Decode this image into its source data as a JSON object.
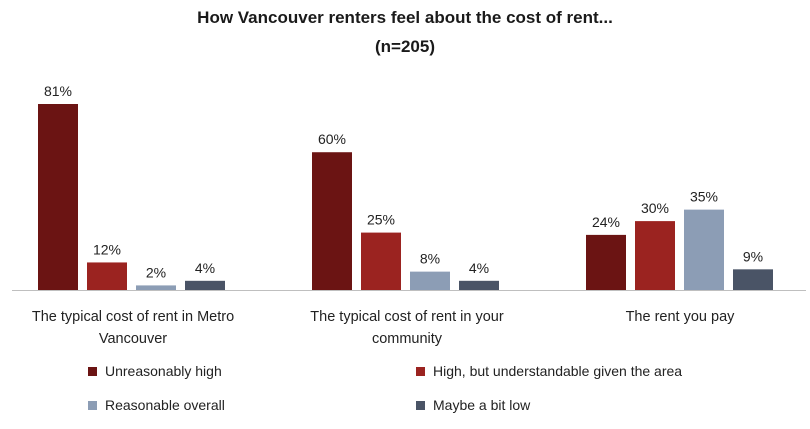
{
  "chart_data": {
    "type": "bar",
    "title": "How Vancouver renters feel about the cost of rent...",
    "subtitle": "(n=205)",
    "categories": [
      [
        "The typical cost of rent in Metro",
        "Vancouver"
      ],
      [
        "The typical cost of rent in your",
        "community"
      ],
      [
        "The rent you pay"
      ]
    ],
    "series": [
      {
        "name": "Unreasonably high",
        "color": "#6b1413",
        "values": [
          81,
          60,
          24
        ]
      },
      {
        "name": "High, but understandable given the area",
        "color": "#9b2320",
        "values": [
          12,
          25,
          30
        ]
      },
      {
        "name": "Reasonable overall",
        "color": "#8c9db5",
        "values": [
          2,
          8,
          35
        ]
      },
      {
        "name": "Maybe a bit low",
        "color": "#4a5466",
        "values": [
          4,
          4,
          9
        ]
      }
    ],
    "value_suffix": "%",
    "ylim": [
      0,
      81
    ],
    "legend_position": "bottom",
    "grid": false
  }
}
